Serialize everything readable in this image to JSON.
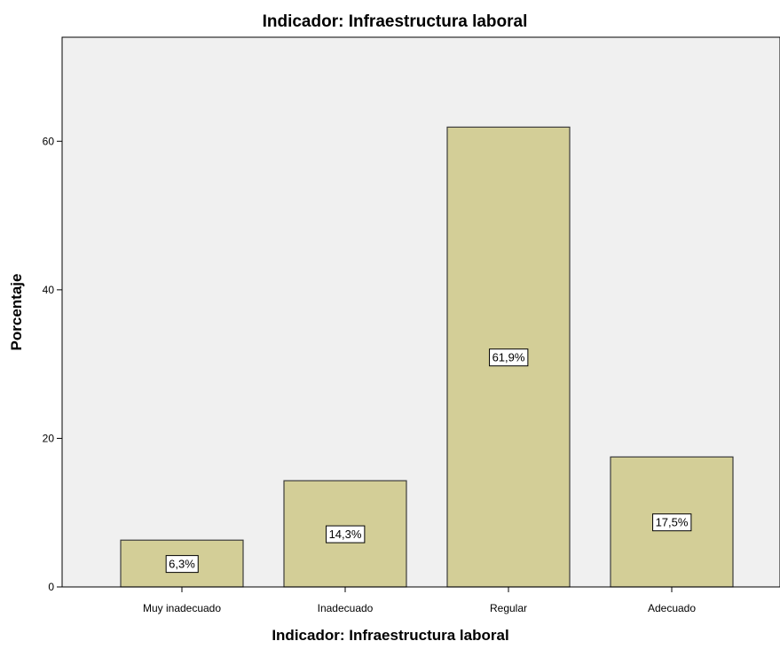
{
  "chart_data": {
    "type": "bar",
    "title": "Indicador: Infraestructura laboral",
    "xlabel": "Indicador: Infraestructura laboral",
    "ylabel": "Porcentaje",
    "categories": [
      "Muy inadecuado",
      "Inadecuado",
      "Regular",
      "Adecuado"
    ],
    "values": [
      6.3,
      14.3,
      61.9,
      17.5
    ],
    "data_labels": [
      "6,3%",
      "14,3%",
      "61,9%",
      "17,5%"
    ],
    "ylim": [
      0,
      74
    ],
    "yticks": [
      0,
      20,
      40,
      60
    ],
    "grid": false,
    "legend": "none",
    "colors": {
      "plot_background": "#f0f0f0",
      "bar_fill": "#d3ce97",
      "bar_stroke": "#3c3c3c",
      "axis": "#000000"
    }
  }
}
